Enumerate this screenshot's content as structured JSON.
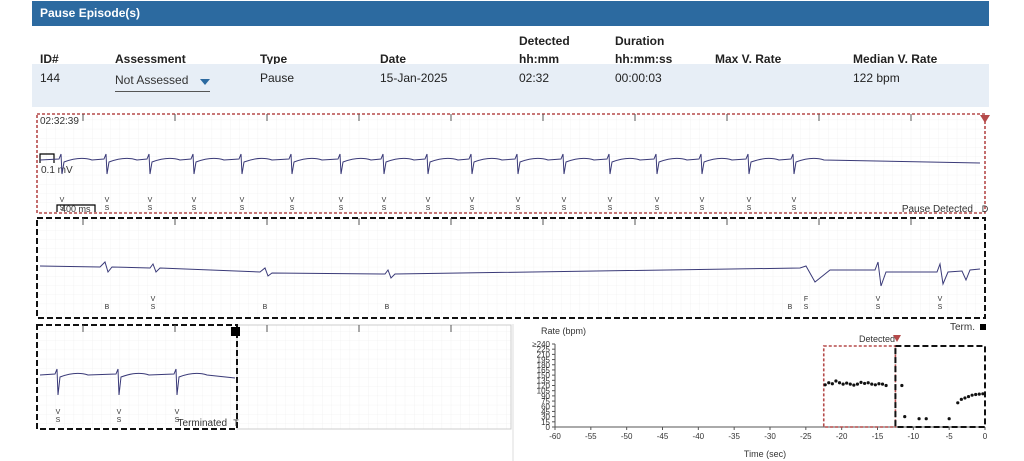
{
  "header": {
    "title": "Pause Episode(s)"
  },
  "table": {
    "columns": {
      "id": "ID#",
      "assessment": "Assessment",
      "type": "Type",
      "date": "Date",
      "detected_l1": "Detected",
      "detected_l2": "hh:mm",
      "duration_l1": "Duration",
      "duration_l2": "hh:mm:ss",
      "max_rate": "Max V. Rate",
      "median_rate": "Median V. Rate"
    },
    "row": {
      "id": "144",
      "assessment": "Not Assessed",
      "type": "Pause",
      "date": "15-Jan-2025",
      "detected": "02:32",
      "duration": "00:00:03",
      "max_rate": "",
      "median_rate": "122 bpm"
    }
  },
  "ecg": {
    "timestamp": "02:32:39",
    "scale_mv": "0.1 mV",
    "scale_ms": "400 ms",
    "strip1_end_label": "Pause Detected",
    "strip1_end_marker": "D",
    "strip2_term_label": "Term.",
    "strip3_terminated_label": "Terminated",
    "strip3_end_marker": "T",
    "strip1_markers": [
      {
        "x": 62,
        "t": "V",
        "b": "S"
      },
      {
        "x": 107,
        "t": "V",
        "b": "S"
      },
      {
        "x": 150,
        "t": "V",
        "b": "S"
      },
      {
        "x": 194,
        "t": "V",
        "b": "S"
      },
      {
        "x": 242,
        "t": "V",
        "b": "S"
      },
      {
        "x": 292,
        "t": "V",
        "b": "S"
      },
      {
        "x": 341,
        "t": "V",
        "b": "S"
      },
      {
        "x": 384,
        "t": "V",
        "b": "S"
      },
      {
        "x": 428,
        "t": "V",
        "b": "S"
      },
      {
        "x": 472,
        "t": "V",
        "b": "S"
      },
      {
        "x": 518,
        "t": "V",
        "b": "S"
      },
      {
        "x": 564,
        "t": "V",
        "b": "S"
      },
      {
        "x": 610,
        "t": "V",
        "b": "S"
      },
      {
        "x": 657,
        "t": "V",
        "b": "S"
      },
      {
        "x": 702,
        "t": "V",
        "b": "S"
      },
      {
        "x": 749,
        "t": "V",
        "b": "S"
      },
      {
        "x": 794,
        "t": "V",
        "b": "S"
      }
    ],
    "strip2_markers": [
      {
        "x": 107,
        "t": "",
        "b": "B"
      },
      {
        "x": 153,
        "t": "V",
        "b": "S"
      },
      {
        "x": 265,
        "t": "",
        "b": "B"
      },
      {
        "x": 387,
        "t": "",
        "b": "B"
      },
      {
        "x": 790,
        "t": "",
        "b": "B"
      },
      {
        "x": 806,
        "t": "F",
        "b": "S"
      },
      {
        "x": 878,
        "t": "V",
        "b": "S"
      },
      {
        "x": 940,
        "t": "V",
        "b": "S"
      }
    ],
    "strip3_markers": [
      {
        "x": 58,
        "t": "V",
        "b": "S"
      },
      {
        "x": 119,
        "t": "V",
        "b": "S"
      },
      {
        "x": 177,
        "t": "V",
        "b": "S"
      }
    ]
  },
  "chart_data": {
    "type": "scatter",
    "title": "Rate (bpm)",
    "xlabel": "Time (sec)",
    "ylabel": "Rate (bpm)",
    "xlim": [
      -60,
      0
    ],
    "ylim": [
      0,
      240
    ],
    "x_ticks": [
      -60,
      -55,
      -50,
      -45,
      -40,
      -35,
      -30,
      -25,
      -20,
      -15,
      -10,
      -5,
      0
    ],
    "y_ticks": [
      "0",
      "15",
      "30",
      "45",
      "60",
      "75",
      "90",
      "105",
      "120",
      "135",
      "150",
      "165",
      "180",
      "195",
      "210",
      "225",
      "≥240"
    ],
    "detected_label": "Detected",
    "detected_window": [
      -22.5,
      -12.5
    ],
    "terminated_window": [
      -12.5,
      0
    ],
    "points": [
      [
        -22.3,
        122
      ],
      [
        -21.8,
        128
      ],
      [
        -21.3,
        125
      ],
      [
        -20.8,
        133
      ],
      [
        -20.3,
        128
      ],
      [
        -19.8,
        124
      ],
      [
        -19.3,
        127
      ],
      [
        -18.8,
        124
      ],
      [
        -18.3,
        121
      ],
      [
        -17.8,
        124
      ],
      [
        -17.3,
        129
      ],
      [
        -16.8,
        126
      ],
      [
        -16.3,
        128
      ],
      [
        -15.8,
        124
      ],
      [
        -15.3,
        122
      ],
      [
        -14.8,
        125
      ],
      [
        -14.3,
        124
      ],
      [
        -13.8,
        120
      ],
      [
        -11.6,
        120
      ],
      [
        -11.2,
        30
      ],
      [
        -9.2,
        24
      ],
      [
        -8.2,
        24
      ],
      [
        -5.0,
        24
      ],
      [
        -3.8,
        70
      ],
      [
        -3.3,
        80
      ],
      [
        -2.8,
        84
      ],
      [
        -2.3,
        88
      ],
      [
        -1.8,
        92
      ],
      [
        -1.3,
        94
      ],
      [
        -0.8,
        95
      ],
      [
        -0.3,
        96
      ]
    ]
  }
}
